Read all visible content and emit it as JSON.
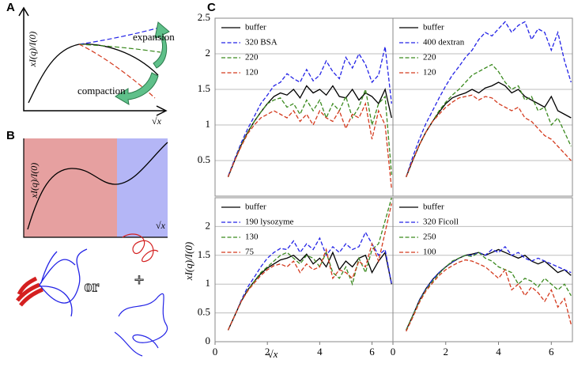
{
  "schematics": {
    "A": {
      "label": "A",
      "ylabel": "xI(q)/I(0)",
      "xlabel": "√x",
      "annotations": [
        "expansion",
        "compaction"
      ]
    },
    "B": {
      "label": "B",
      "ylabel": "xI(q)/I(0)",
      "xlabel": "√x",
      "annotations": [
        "or",
        "+"
      ]
    }
  },
  "figure_c": {
    "label": "C",
    "ylabel": "xI(q)/I(0)",
    "xlabel": "√x"
  },
  "chart_data": [
    {
      "type": "line",
      "xlim": [
        0,
        6.8
      ],
      "ylim": [
        0,
        2.5
      ],
      "yticks": [
        0.5,
        1,
        1.5,
        2,
        2.5
      ],
      "show_ytick_labels": true,
      "grid": true,
      "x": [
        0.5,
        0.75,
        1,
        1.25,
        1.5,
        1.75,
        2,
        2.25,
        2.5,
        2.75,
        3,
        3.25,
        3.5,
        3.75,
        4,
        4.25,
        4.5,
        4.75,
        5,
        5.25,
        5.5,
        5.75,
        6,
        6.25,
        6.5,
        6.75
      ],
      "series": [
        {
          "name": "buffer",
          "color": "#000000",
          "style": "solid",
          "values": [
            0.27,
            0.5,
            0.72,
            0.9,
            1.05,
            1.18,
            1.3,
            1.4,
            1.45,
            1.42,
            1.5,
            1.38,
            1.55,
            1.45,
            1.5,
            1.42,
            1.55,
            1.4,
            1.38,
            1.5,
            1.35,
            1.45,
            1.4,
            1.3,
            1.5,
            1.1
          ]
        },
        {
          "name": "320 BSA",
          "color": "#2323e6",
          "style": "dashed",
          "values": [
            0.28,
            0.52,
            0.75,
            0.95,
            1.12,
            1.3,
            1.42,
            1.55,
            1.6,
            1.72,
            1.65,
            1.6,
            1.78,
            1.62,
            1.7,
            1.9,
            1.75,
            1.65,
            1.95,
            1.8,
            2.0,
            1.85,
            1.6,
            1.7,
            2.1,
            1.3
          ]
        },
        {
          "name": "220",
          "color": "#3b8a1f",
          "style": "dashed",
          "values": [
            0.27,
            0.5,
            0.72,
            0.9,
            1.05,
            1.18,
            1.3,
            1.35,
            1.38,
            1.25,
            1.3,
            1.15,
            1.35,
            1.2,
            1.35,
            1.1,
            1.3,
            1.2,
            1.4,
            1.1,
            1.25,
            1.5,
            1.0,
            1.3,
            1.4,
            0.3
          ]
        },
        {
          "name": "120",
          "color": "#d43a1e",
          "style": "dashed",
          "values": [
            0.27,
            0.5,
            0.7,
            0.88,
            1.0,
            1.1,
            1.15,
            1.2,
            1.15,
            1.1,
            1.2,
            1.05,
            1.15,
            1.0,
            1.2,
            1.1,
            1.05,
            1.2,
            0.95,
            1.15,
            1.1,
            1.3,
            0.8,
            1.2,
            1.0,
            0.1
          ]
        }
      ]
    },
    {
      "type": "line",
      "xlim": [
        0,
        6.8
      ],
      "ylim": [
        0,
        2.5
      ],
      "yticks": [
        0.5,
        1,
        1.5,
        2,
        2.5
      ],
      "show_ytick_labels": false,
      "grid": true,
      "x": [
        0.5,
        0.75,
        1,
        1.25,
        1.5,
        1.75,
        2,
        2.25,
        2.5,
        2.75,
        3,
        3.25,
        3.5,
        3.75,
        4,
        4.25,
        4.5,
        4.75,
        5,
        5.25,
        5.5,
        5.75,
        6,
        6.25,
        6.5,
        6.75
      ],
      "series": [
        {
          "name": "buffer",
          "color": "#000000",
          "style": "solid",
          "values": [
            0.27,
            0.5,
            0.72,
            0.9,
            1.05,
            1.18,
            1.3,
            1.38,
            1.42,
            1.45,
            1.5,
            1.45,
            1.52,
            1.55,
            1.6,
            1.55,
            1.45,
            1.5,
            1.4,
            1.35,
            1.3,
            1.25,
            1.4,
            1.2,
            1.15,
            1.1
          ]
        },
        {
          "name": "400 dextran",
          "color": "#2323e6",
          "style": "dashed",
          "values": [
            0.27,
            0.55,
            0.8,
            1.02,
            1.2,
            1.38,
            1.55,
            1.7,
            1.82,
            1.95,
            2.05,
            2.2,
            2.3,
            2.25,
            2.35,
            2.45,
            2.3,
            2.4,
            2.45,
            2.2,
            2.35,
            2.3,
            2.05,
            2.3,
            1.9,
            1.6
          ]
        },
        {
          "name": "220",
          "color": "#3b8a1f",
          "style": "dashed",
          "values": [
            0.27,
            0.5,
            0.72,
            0.9,
            1.05,
            1.2,
            1.32,
            1.42,
            1.5,
            1.6,
            1.7,
            1.75,
            1.8,
            1.85,
            1.75,
            1.6,
            1.5,
            1.55,
            1.35,
            1.4,
            1.2,
            1.25,
            1.0,
            1.1,
            0.9,
            0.7
          ]
        },
        {
          "name": "120",
          "color": "#d43a1e",
          "style": "dashed",
          "values": [
            0.27,
            0.5,
            0.72,
            0.9,
            1.05,
            1.15,
            1.25,
            1.32,
            1.38,
            1.4,
            1.42,
            1.35,
            1.4,
            1.38,
            1.3,
            1.25,
            1.2,
            1.25,
            1.1,
            1.05,
            0.95,
            0.85,
            0.8,
            0.7,
            0.6,
            0.5
          ]
        }
      ]
    },
    {
      "type": "line",
      "xlim": [
        0,
        6.8
      ],
      "ylim": [
        0,
        2.5
      ],
      "xticks": [
        0,
        2,
        4,
        6
      ],
      "yticks": [
        0,
        0.5,
        1,
        1.5,
        2
      ],
      "show_ytick_labels": true,
      "grid": true,
      "x": [
        0.5,
        0.75,
        1,
        1.25,
        1.5,
        1.75,
        2,
        2.25,
        2.5,
        2.75,
        3,
        3.25,
        3.5,
        3.75,
        4,
        4.25,
        4.5,
        4.75,
        5,
        5.25,
        5.5,
        5.75,
        6,
        6.25,
        6.5,
        6.75
      ],
      "series": [
        {
          "name": "buffer",
          "color": "#000000",
          "style": "solid",
          "values": [
            0.2,
            0.45,
            0.7,
            0.9,
            1.05,
            1.18,
            1.28,
            1.35,
            1.42,
            1.45,
            1.5,
            1.4,
            1.52,
            1.35,
            1.45,
            1.3,
            1.55,
            1.25,
            1.4,
            1.3,
            1.45,
            1.5,
            1.2,
            1.4,
            1.55,
            1.0
          ]
        },
        {
          "name": "190 lysozyme",
          "color": "#2323e6",
          "style": "dashed",
          "values": [
            0.2,
            0.45,
            0.72,
            0.95,
            1.12,
            1.3,
            1.45,
            1.55,
            1.62,
            1.6,
            1.75,
            1.55,
            1.7,
            1.6,
            1.8,
            1.5,
            1.65,
            1.55,
            1.7,
            1.6,
            1.65,
            1.9,
            1.7,
            1.5,
            1.6,
            1.0
          ]
        },
        {
          "name": "130",
          "color": "#3b8a1f",
          "style": "dashed",
          "values": [
            0.2,
            0.45,
            0.7,
            0.9,
            1.05,
            1.2,
            1.3,
            1.4,
            1.5,
            1.55,
            1.45,
            1.35,
            1.5,
            1.45,
            1.3,
            1.55,
            1.2,
            1.1,
            1.3,
            1.0,
            1.45,
            1.2,
            1.6,
            1.7,
            2.1,
            2.5
          ]
        },
        {
          "name": "75",
          "color": "#d43a1e",
          "style": "dashed",
          "values": [
            0.2,
            0.45,
            0.7,
            0.88,
            1.02,
            1.15,
            1.25,
            1.32,
            1.35,
            1.3,
            1.4,
            1.2,
            1.35,
            1.25,
            1.3,
            1.6,
            1.1,
            1.25,
            1.2,
            1.1,
            1.4,
            1.3,
            1.7,
            1.4,
            1.9,
            2.4
          ]
        }
      ]
    },
    {
      "type": "line",
      "xlim": [
        0,
        6.8
      ],
      "ylim": [
        0,
        2.5
      ],
      "xticks": [
        0,
        2,
        4,
        6
      ],
      "yticks": [
        0,
        0.5,
        1,
        1.5,
        2
      ],
      "show_ytick_labels": false,
      "grid": true,
      "x": [
        0.5,
        0.75,
        1,
        1.25,
        1.5,
        1.75,
        2,
        2.25,
        2.5,
        2.75,
        3,
        3.25,
        3.5,
        3.75,
        4,
        4.25,
        4.5,
        4.75,
        5,
        5.25,
        5.5,
        5.75,
        6,
        6.25,
        6.5,
        6.75
      ],
      "series": [
        {
          "name": "buffer",
          "color": "#000000",
          "style": "solid",
          "values": [
            0.2,
            0.45,
            0.72,
            0.92,
            1.08,
            1.2,
            1.3,
            1.38,
            1.45,
            1.5,
            1.52,
            1.55,
            1.5,
            1.55,
            1.6,
            1.55,
            1.5,
            1.45,
            1.5,
            1.4,
            1.35,
            1.4,
            1.3,
            1.2,
            1.25,
            1.15
          ]
        },
        {
          "name": "320 Ficoll",
          "color": "#2323e6",
          "style": "dashed",
          "values": [
            0.2,
            0.45,
            0.72,
            0.92,
            1.08,
            1.2,
            1.3,
            1.38,
            1.45,
            1.5,
            1.5,
            1.55,
            1.5,
            1.6,
            1.55,
            1.65,
            1.5,
            1.55,
            1.45,
            1.4,
            1.45,
            1.4,
            1.35,
            1.3,
            1.25,
            1.2
          ]
        },
        {
          "name": "250",
          "color": "#3b8a1f",
          "style": "dashed",
          "values": [
            0.2,
            0.45,
            0.7,
            0.9,
            1.05,
            1.18,
            1.3,
            1.4,
            1.45,
            1.5,
            1.48,
            1.55,
            1.45,
            1.4,
            1.3,
            1.25,
            1.2,
            1.0,
            1.1,
            1.05,
            0.95,
            1.1,
            1.0,
            0.9,
            1.0,
            0.8
          ]
        },
        {
          "name": "100",
          "color": "#d43a1e",
          "style": "dashed",
          "values": [
            0.18,
            0.42,
            0.68,
            0.88,
            1.02,
            1.15,
            1.25,
            1.32,
            1.38,
            1.42,
            1.4,
            1.35,
            1.3,
            1.2,
            1.1,
            1.25,
            0.9,
            1.0,
            0.8,
            0.95,
            0.85,
            0.7,
            0.9,
            0.6,
            0.75,
            0.3
          ]
        }
      ]
    }
  ]
}
